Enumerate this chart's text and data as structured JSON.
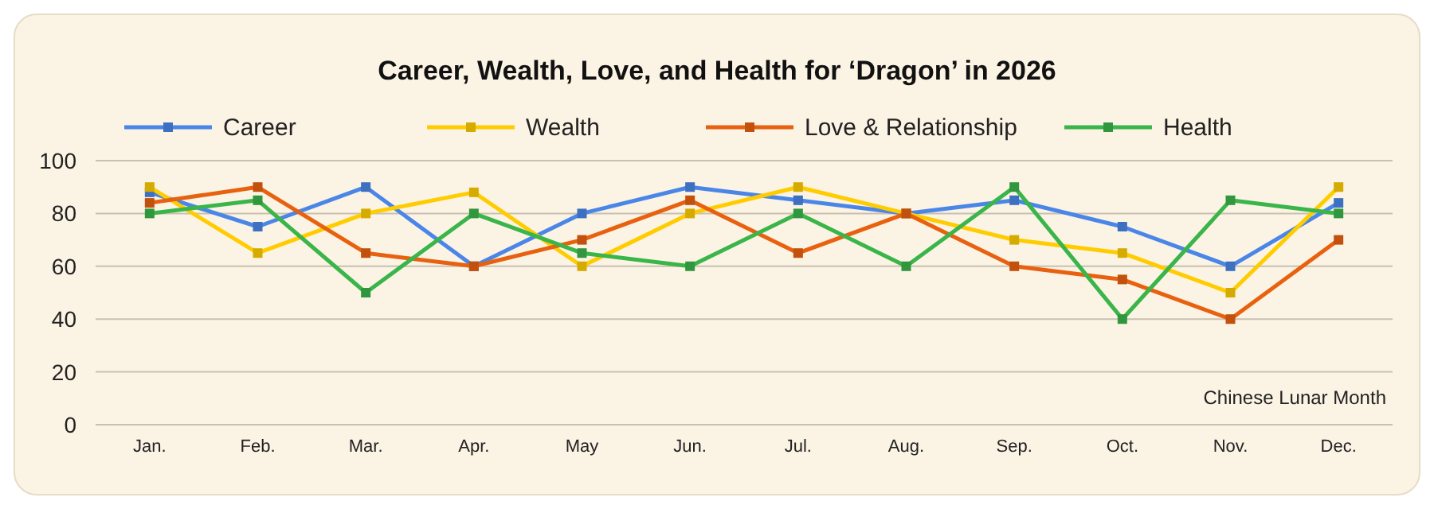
{
  "chart_data": {
    "type": "line",
    "title": "Career, Wealth, Love, and Health for ‘Dragon’ in 2026",
    "categories": [
      "Jan.",
      "Feb.",
      "Mar.",
      "Apr.",
      "May",
      "Jun.",
      "Jul.",
      "Aug.",
      "Sep.",
      "Oct.",
      "Nov.",
      "Dec."
    ],
    "series": [
      {
        "name": "Career",
        "color": "#4a86e8",
        "values": [
          88,
          75,
          90,
          60,
          80,
          90,
          85,
          80,
          85,
          75,
          60,
          84
        ]
      },
      {
        "name": "Wealth",
        "color": "#ffcc00",
        "values": [
          90,
          65,
          80,
          88,
          60,
          80,
          90,
          80,
          70,
          65,
          50,
          90
        ]
      },
      {
        "name": "Love & Relationship",
        "color": "#e8610f",
        "values": [
          84,
          90,
          65,
          60,
          70,
          85,
          65,
          80,
          60,
          55,
          40,
          70
        ]
      },
      {
        "name": "Health",
        "color": "#3ab54a",
        "values": [
          80,
          85,
          50,
          80,
          65,
          60,
          80,
          60,
          90,
          40,
          85,
          80
        ]
      }
    ],
    "ylim": [
      0,
      100
    ],
    "yticks": [
      0,
      20,
      40,
      60,
      80,
      100
    ],
    "grid": "y",
    "legend": "top",
    "marker": "square",
    "line_style": "solid",
    "annotations": [
      "Chinese Lunar Month"
    ]
  }
}
